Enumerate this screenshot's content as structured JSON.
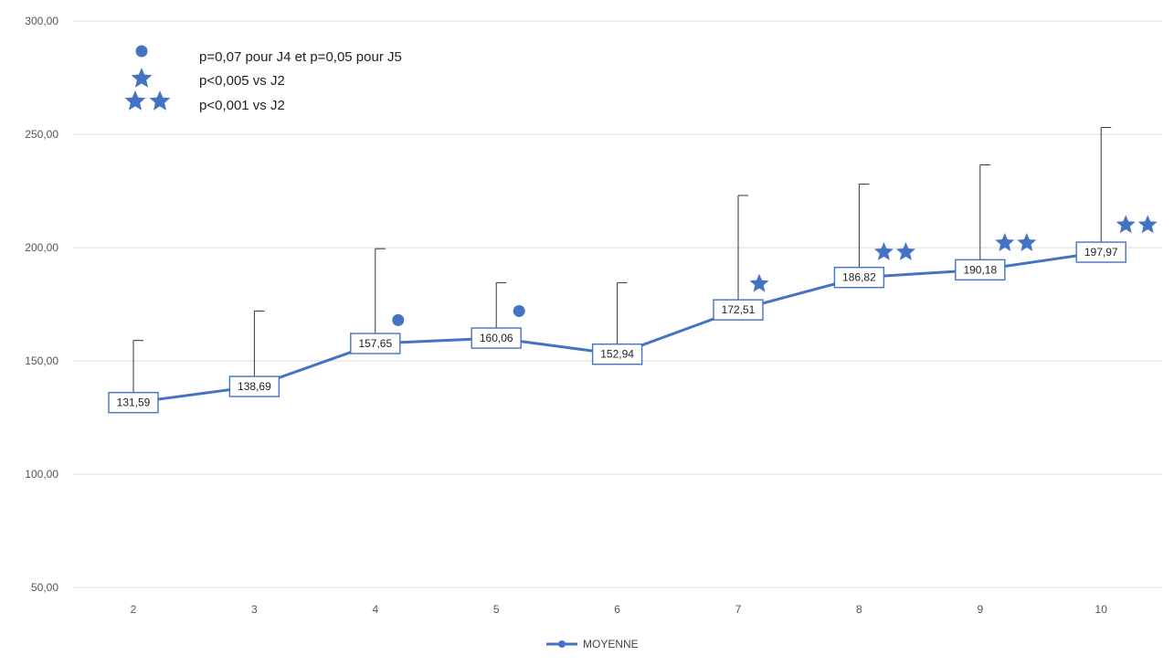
{
  "chart_data": {
    "type": "line",
    "x": [
      2,
      3,
      4,
      5,
      6,
      7,
      8,
      9,
      10
    ],
    "x_tick_labels": [
      "2",
      "3",
      "4",
      "5",
      "6",
      "7",
      "8",
      "9",
      "10"
    ],
    "y_tick_labels": [
      "50,00",
      "100,00",
      "150,00",
      "200,00",
      "250,00",
      "300,00"
    ],
    "ylim": [
      50,
      300
    ],
    "grid": true,
    "series": [
      {
        "name": "MOYENNE",
        "color": "#4472C4",
        "values": [
          131.59,
          138.69,
          157.65,
          160.06,
          152.94,
          172.51,
          186.82,
          190.18,
          197.97
        ],
        "labels": [
          "131,59",
          "138,69",
          "157,65",
          "160,06",
          "152,94",
          "172,51",
          "186,82",
          "190,18",
          "197,97"
        ],
        "error_upper": [
          159,
          172,
          199.5,
          184.5,
          184.5,
          223,
          228,
          236.5,
          253
        ]
      }
    ],
    "significance_markers": [
      {
        "x": 4,
        "y": 168,
        "type": "dot"
      },
      {
        "x": 5,
        "y": 172,
        "type": "dot"
      },
      {
        "x": 7,
        "y": 184,
        "type": "star"
      },
      {
        "x": 8,
        "y": 198,
        "type": "double-star"
      },
      {
        "x": 9,
        "y": 202,
        "type": "double-star"
      },
      {
        "x": 10,
        "y": 210,
        "type": "double-star"
      }
    ],
    "annotation_legend": [
      {
        "symbol": "dot",
        "text": "p=0,07 pour J4 et p=0,05 pour J5"
      },
      {
        "symbol": "star",
        "text": "p<0,005 vs J2"
      },
      {
        "symbol": "double-star",
        "text": "p<0,001 vs J2"
      }
    ],
    "legend_position": "bottom-center",
    "marker_color": "#4472C4"
  }
}
